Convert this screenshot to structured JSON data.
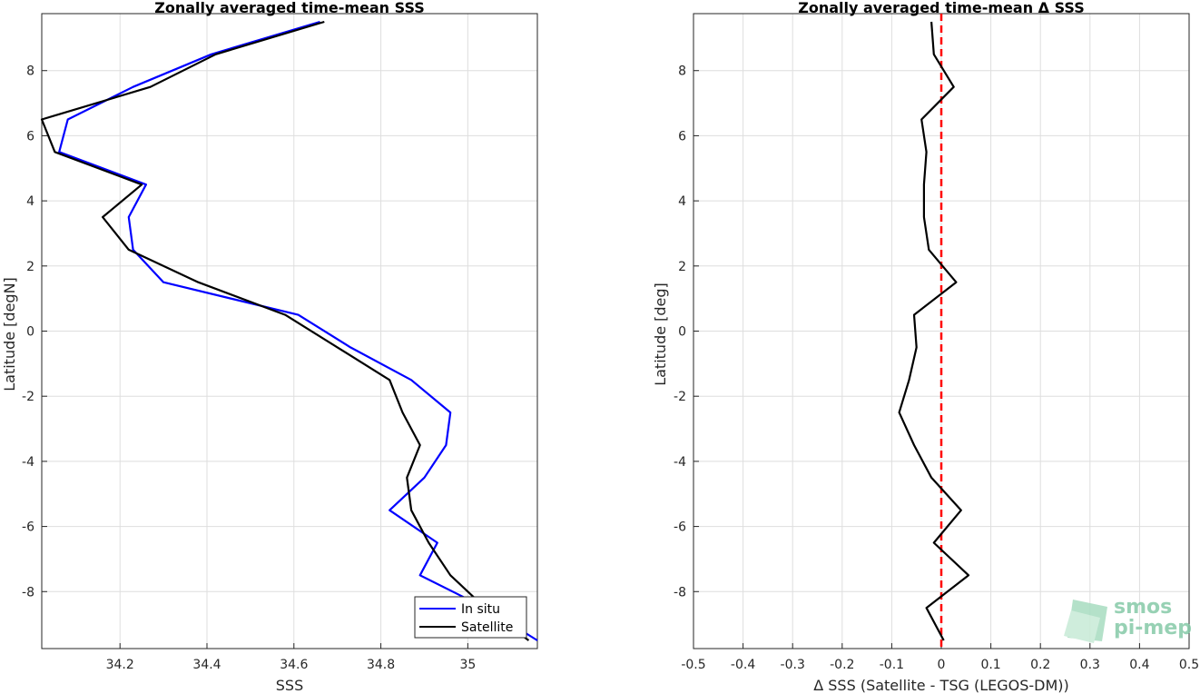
{
  "chart_data": [
    {
      "type": "line",
      "title": "Zonally averaged time-mean SSS",
      "xlabel": "SSS",
      "ylabel": "Latitude [degN]",
      "xlim": [
        34.02,
        35.16
      ],
      "ylim": [
        -9.75,
        9.75
      ],
      "xticks": [
        34.2,
        34.4,
        34.6,
        34.8,
        35
      ],
      "xtick_labels": [
        "34.2",
        "34.4",
        "34.6",
        "34.8",
        "35"
      ],
      "yticks": [
        -8,
        -6,
        -4,
        -2,
        0,
        2,
        4,
        6,
        8
      ],
      "ytick_labels": [
        "-8",
        "-6",
        "-4",
        "-2",
        "0",
        "2",
        "4",
        "6",
        "8"
      ],
      "grid": true,
      "legend_position": "bottom-right",
      "y": [
        9.5,
        8.5,
        7.5,
        6.5,
        5.5,
        4.5,
        3.5,
        2.5,
        1.5,
        0.5,
        -0.5,
        -1.5,
        -2.5,
        -3.5,
        -4.5,
        -5.5,
        -6.5,
        -7.5,
        -8.5,
        -9.5
      ],
      "series": [
        {
          "name": "In situ",
          "color": "#0000ff",
          "x": [
            34.66,
            34.41,
            34.23,
            34.08,
            34.06,
            34.26,
            34.22,
            34.23,
            34.3,
            34.61,
            34.73,
            34.87,
            34.96,
            34.95,
            34.9,
            34.82,
            34.93,
            34.89,
            35.04,
            35.16
          ]
        },
        {
          "name": "Satellite",
          "color": "#000000",
          "x": [
            34.67,
            34.42,
            34.27,
            34.02,
            34.05,
            34.25,
            34.16,
            34.22,
            34.38,
            34.58,
            34.7,
            34.82,
            34.85,
            34.89,
            34.86,
            34.87,
            34.91,
            34.96,
            35.04,
            35.14
          ]
        }
      ]
    },
    {
      "type": "line",
      "title": "Zonally averaged time-mean Δ SSS",
      "xlabel": "Δ SSS (Satellite - TSG (LEGOS-DM))",
      "ylabel": "Latitude [deg]",
      "xlim": [
        -0.5,
        0.5
      ],
      "ylim": [
        -9.75,
        9.75
      ],
      "xticks": [
        -0.5,
        -0.4,
        -0.3,
        -0.2,
        -0.1,
        0,
        0.1,
        0.2,
        0.3,
        0.4,
        0.5
      ],
      "xtick_labels": [
        "-0.5",
        "-0.4",
        "-0.3",
        "-0.2",
        "-0.1",
        "0",
        "0.1",
        "0.2",
        "0.3",
        "0.4",
        "0.5"
      ],
      "yticks": [
        -8,
        -6,
        -4,
        -2,
        0,
        2,
        4,
        6,
        8
      ],
      "ytick_labels": [
        "-8",
        "-6",
        "-4",
        "-2",
        "0",
        "2",
        "4",
        "6",
        "8"
      ],
      "grid": true,
      "reference_line": {
        "x": 0,
        "color": "#ff0000",
        "style": "dashed"
      },
      "y": [
        9.5,
        8.5,
        7.5,
        6.5,
        5.5,
        4.5,
        3.5,
        2.5,
        1.5,
        0.5,
        -0.5,
        -1.5,
        -2.5,
        -3.5,
        -4.5,
        -5.5,
        -6.5,
        -7.5,
        -8.5,
        -9.5
      ],
      "series": [
        {
          "color": "#000000",
          "x": [
            -0.02,
            -0.015,
            0.025,
            -0.04,
            -0.03,
            -0.035,
            -0.035,
            -0.025,
            0.03,
            -0.055,
            -0.05,
            -0.065,
            -0.085,
            -0.055,
            -0.02,
            0.04,
            -0.015,
            0.055,
            -0.03,
            0.005
          ]
        }
      ]
    }
  ],
  "watermark": {
    "line1": "smos",
    "line2": "pi-mep"
  }
}
